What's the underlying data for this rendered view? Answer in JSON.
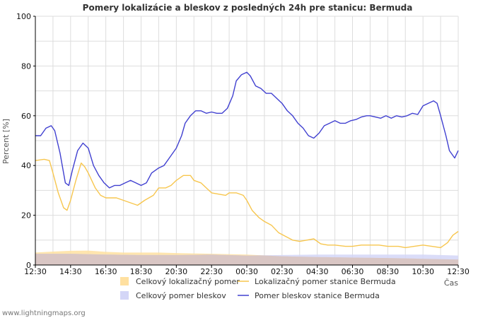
{
  "colors": {
    "grid": "#dddddd",
    "axis": "#000000",
    "total_loc_fill": "#ffe0a0",
    "total_strike_fill": "#d4d6f7",
    "overlap_fill": "#d8c4c0",
    "station_loc_line": "#f7c64e",
    "station_strike_line": "#4040d0"
  },
  "chart_data": {
    "type": "line",
    "title": "Pomery lokalizácie a bleskov z posledných 24h pre stanicu: Bermuda",
    "ylabel": "Percent   [%]",
    "xlabel": "Čas",
    "ylim": [
      0,
      100
    ],
    "yticks": [
      "0",
      "20",
      "40",
      "60",
      "80",
      "100"
    ],
    "xlim": [
      0,
      24
    ],
    "xticks": [
      {
        "t": 0,
        "label": "12:30"
      },
      {
        "t": 2,
        "label": "14:30"
      },
      {
        "t": 4,
        "label": "16:30"
      },
      {
        "t": 6,
        "label": "18:30"
      },
      {
        "t": 8,
        "label": "20:30"
      },
      {
        "t": 10,
        "label": "22:30"
      },
      {
        "t": 12,
        "label": "00:30"
      },
      {
        "t": 14,
        "label": "02:30"
      },
      {
        "t": 16,
        "label": "04:30"
      },
      {
        "t": 18,
        "label": "06:30"
      },
      {
        "t": 20,
        "label": "08:30"
      },
      {
        "t": 22,
        "label": "10:30"
      },
      {
        "t": 24,
        "label": "12:30"
      }
    ],
    "series": [
      {
        "name": "Celkový lokalizačný pomer",
        "kind": "area",
        "color": "#ffe0a0",
        "points": [
          [
            0,
            5
          ],
          [
            1,
            5.4
          ],
          [
            2,
            5.7
          ],
          [
            3,
            5.8
          ],
          [
            4,
            5.3
          ],
          [
            5,
            5
          ],
          [
            7,
            5
          ],
          [
            8,
            4.8
          ],
          [
            10,
            4.5
          ],
          [
            12,
            4.2
          ],
          [
            14,
            3.5
          ],
          [
            16,
            3.2
          ],
          [
            18,
            3
          ],
          [
            20,
            2.8
          ],
          [
            22,
            2.5
          ],
          [
            24,
            2.2
          ]
        ]
      },
      {
        "name": "Celkový pomer bleskov",
        "kind": "area",
        "color": "#d4d6f7",
        "points": [
          [
            0,
            4.5
          ],
          [
            2,
            4.5
          ],
          [
            4,
            4.2
          ],
          [
            6,
            4
          ],
          [
            8,
            4
          ],
          [
            10,
            4.2
          ],
          [
            12,
            3.8
          ],
          [
            14,
            4
          ],
          [
            16,
            4.2
          ],
          [
            18,
            4.2
          ],
          [
            20,
            4.2
          ],
          [
            22,
            4.2
          ],
          [
            24,
            3.8
          ]
        ]
      },
      {
        "name": "Lokalizačný pomer stanice Bermuda",
        "kind": "line",
        "color": "#f7c64e",
        "points": [
          [
            0,
            42
          ],
          [
            0.5,
            42.5
          ],
          [
            0.8,
            42
          ],
          [
            1,
            37
          ],
          [
            1.3,
            29
          ],
          [
            1.6,
            23
          ],
          [
            1.8,
            22
          ],
          [
            2.0,
            26
          ],
          [
            2.3,
            34
          ],
          [
            2.6,
            41
          ],
          [
            2.8,
            39.5
          ],
          [
            3.0,
            37
          ],
          [
            3.4,
            31
          ],
          [
            3.7,
            28
          ],
          [
            4.0,
            27
          ],
          [
            4.6,
            27
          ],
          [
            5.0,
            26
          ],
          [
            5.4,
            25
          ],
          [
            5.8,
            24
          ],
          [
            6.2,
            26
          ],
          [
            6.7,
            28
          ],
          [
            7.0,
            31
          ],
          [
            7.4,
            31
          ],
          [
            7.7,
            32
          ],
          [
            8.0,
            34
          ],
          [
            8.4,
            36
          ],
          [
            8.8,
            36
          ],
          [
            9.0,
            34
          ],
          [
            9.4,
            33
          ],
          [
            9.7,
            31
          ],
          [
            10.0,
            29
          ],
          [
            10.4,
            28.5
          ],
          [
            10.8,
            28
          ],
          [
            11.0,
            29
          ],
          [
            11.4,
            29
          ],
          [
            11.8,
            28
          ],
          [
            12.0,
            26
          ],
          [
            12.3,
            22
          ],
          [
            12.7,
            19
          ],
          [
            13.0,
            17.5
          ],
          [
            13.4,
            16
          ],
          [
            13.8,
            13
          ],
          [
            14.2,
            11.5
          ],
          [
            14.6,
            10
          ],
          [
            15.0,
            9.5
          ],
          [
            15.4,
            10
          ],
          [
            15.8,
            10.5
          ],
          [
            16.2,
            8.5
          ],
          [
            16.6,
            8
          ],
          [
            17.0,
            8
          ],
          [
            17.6,
            7.5
          ],
          [
            18.0,
            7.5
          ],
          [
            18.5,
            8
          ],
          [
            19.0,
            8
          ],
          [
            19.5,
            8
          ],
          [
            20.0,
            7.5
          ],
          [
            20.6,
            7.5
          ],
          [
            21.0,
            7
          ],
          [
            21.5,
            7.5
          ],
          [
            22.0,
            8
          ],
          [
            22.5,
            7.5
          ],
          [
            23.0,
            7
          ],
          [
            23.4,
            9
          ],
          [
            23.7,
            12
          ],
          [
            24.0,
            13.5
          ]
        ]
      },
      {
        "name": "Pomer bleskov stanice Bermuda",
        "kind": "line",
        "color": "#4040d0",
        "points": [
          [
            0,
            52
          ],
          [
            0.3,
            52
          ],
          [
            0.6,
            55
          ],
          [
            0.9,
            56
          ],
          [
            1.1,
            54
          ],
          [
            1.4,
            45
          ],
          [
            1.7,
            33
          ],
          [
            1.9,
            32
          ],
          [
            2.1,
            38
          ],
          [
            2.4,
            46
          ],
          [
            2.7,
            49
          ],
          [
            3.0,
            47
          ],
          [
            3.3,
            40
          ],
          [
            3.6,
            36
          ],
          [
            3.9,
            33
          ],
          [
            4.2,
            31
          ],
          [
            4.5,
            32
          ],
          [
            4.8,
            32
          ],
          [
            5.1,
            33
          ],
          [
            5.4,
            34
          ],
          [
            5.7,
            33
          ],
          [
            6.0,
            32
          ],
          [
            6.3,
            33
          ],
          [
            6.6,
            37
          ],
          [
            7.0,
            39
          ],
          [
            7.3,
            40
          ],
          [
            7.6,
            43
          ],
          [
            8.0,
            47
          ],
          [
            8.3,
            52
          ],
          [
            8.5,
            57
          ],
          [
            8.8,
            60
          ],
          [
            9.1,
            62
          ],
          [
            9.4,
            62
          ],
          [
            9.7,
            61
          ],
          [
            10.0,
            61.5
          ],
          [
            10.3,
            61
          ],
          [
            10.6,
            61
          ],
          [
            10.9,
            63
          ],
          [
            11.2,
            68
          ],
          [
            11.4,
            74
          ],
          [
            11.7,
            76.5
          ],
          [
            12.0,
            77.5
          ],
          [
            12.2,
            76
          ],
          [
            12.5,
            72
          ],
          [
            12.8,
            71
          ],
          [
            13.1,
            69
          ],
          [
            13.4,
            69
          ],
          [
            13.7,
            67
          ],
          [
            14.0,
            65
          ],
          [
            14.3,
            62
          ],
          [
            14.6,
            60
          ],
          [
            14.9,
            57
          ],
          [
            15.2,
            55
          ],
          [
            15.5,
            52
          ],
          [
            15.8,
            51
          ],
          [
            16.1,
            53
          ],
          [
            16.4,
            56
          ],
          [
            16.7,
            57
          ],
          [
            17.0,
            58
          ],
          [
            17.3,
            57
          ],
          [
            17.6,
            57
          ],
          [
            17.9,
            58
          ],
          [
            18.2,
            58.5
          ],
          [
            18.5,
            59.5
          ],
          [
            18.8,
            60
          ],
          [
            19.0,
            60
          ],
          [
            19.3,
            59.5
          ],
          [
            19.6,
            59
          ],
          [
            19.9,
            60
          ],
          [
            20.2,
            59
          ],
          [
            20.5,
            60
          ],
          [
            20.8,
            59.5
          ],
          [
            21.1,
            60
          ],
          [
            21.4,
            61
          ],
          [
            21.7,
            60.5
          ],
          [
            22.0,
            64
          ],
          [
            22.3,
            65
          ],
          [
            22.6,
            66
          ],
          [
            22.8,
            65
          ],
          [
            23.0,
            60
          ],
          [
            23.3,
            52
          ],
          [
            23.5,
            46
          ],
          [
            23.8,
            43
          ],
          [
            24.0,
            46
          ]
        ]
      }
    ],
    "legend": [
      {
        "label": "Celkový lokalizačný pomer",
        "kind": "swatch",
        "color": "#ffe0a0"
      },
      {
        "label": "Lokalizačný pomer stanice Bermuda",
        "kind": "line",
        "color": "#f7c64e"
      },
      {
        "label": "Celkový pomer bleskov",
        "kind": "swatch",
        "color": "#d4d6f7"
      },
      {
        "label": "Pomer bleskov stanice Bermuda",
        "kind": "line",
        "color": "#4040d0"
      }
    ]
  },
  "footer": "www.lightningmaps.org"
}
